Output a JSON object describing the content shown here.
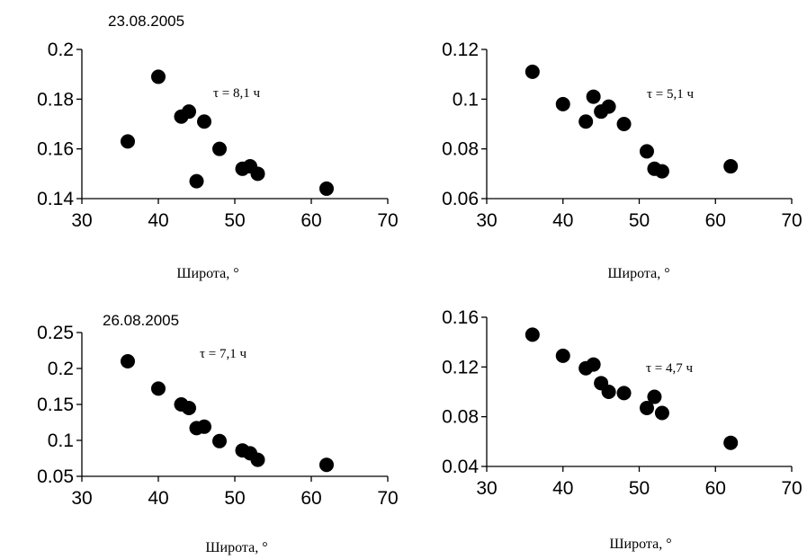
{
  "chart_data": [
    {
      "type": "scatter",
      "date": "23.08.2005",
      "annotation": "τ = 8,1 ч",
      "xlabel": "Широта, °",
      "xlim": [
        30,
        70
      ],
      "xticks": [
        "30",
        "40",
        "50",
        "60",
        "70"
      ],
      "ylim": [
        0.14,
        0.2
      ],
      "yticks": [
        "0.14",
        "0.16",
        "0.18",
        "0.2"
      ],
      "points": [
        {
          "x": 36,
          "y": 0.163
        },
        {
          "x": 40,
          "y": 0.189
        },
        {
          "x": 43,
          "y": 0.173
        },
        {
          "x": 44,
          "y": 0.175
        },
        {
          "x": 45,
          "y": 0.147
        },
        {
          "x": 46,
          "y": 0.171
        },
        {
          "x": 48,
          "y": 0.16
        },
        {
          "x": 51,
          "y": 0.152
        },
        {
          "x": 52,
          "y": 0.153
        },
        {
          "x": 53,
          "y": 0.15
        },
        {
          "x": 62,
          "y": 0.144
        }
      ]
    },
    {
      "type": "scatter",
      "date": "",
      "annotation": "τ = 5,1 ч",
      "xlabel": "Широта, °",
      "xlim": [
        30,
        70
      ],
      "xticks": [
        "30",
        "40",
        "50",
        "60",
        "70"
      ],
      "ylim": [
        0.06,
        0.12
      ],
      "yticks": [
        "0.06",
        "0.08",
        "0.1",
        "0.12"
      ],
      "points": [
        {
          "x": 36,
          "y": 0.111
        },
        {
          "x": 40,
          "y": 0.098
        },
        {
          "x": 43,
          "y": 0.091
        },
        {
          "x": 44,
          "y": 0.101
        },
        {
          "x": 45,
          "y": 0.095
        },
        {
          "x": 46,
          "y": 0.097
        },
        {
          "x": 48,
          "y": 0.09
        },
        {
          "x": 51,
          "y": 0.079
        },
        {
          "x": 52,
          "y": 0.072
        },
        {
          "x": 53,
          "y": 0.071
        },
        {
          "x": 62,
          "y": 0.073
        }
      ]
    },
    {
      "type": "scatter",
      "date": "26.08.2005",
      "annotation": "τ = 7,1 ч",
      "xlabel": "Широта, °",
      "xlim": [
        30,
        70
      ],
      "xticks": [
        "30",
        "40",
        "50",
        "60",
        "70"
      ],
      "ylim": [
        0.05,
        0.25
      ],
      "yticks": [
        "0.05",
        "0.1",
        "0.15",
        "0.2",
        "0.25"
      ],
      "points": [
        {
          "x": 36,
          "y": 0.21
        },
        {
          "x": 40,
          "y": 0.172
        },
        {
          "x": 43,
          "y": 0.15
        },
        {
          "x": 44,
          "y": 0.145
        },
        {
          "x": 45,
          "y": 0.117
        },
        {
          "x": 46,
          "y": 0.119
        },
        {
          "x": 48,
          "y": 0.099
        },
        {
          "x": 51,
          "y": 0.086
        },
        {
          "x": 52,
          "y": 0.082
        },
        {
          "x": 53,
          "y": 0.073
        },
        {
          "x": 62,
          "y": 0.066
        }
      ]
    },
    {
      "type": "scatter",
      "date": "",
      "annotation": "τ = 4,7 ч",
      "xlabel": "Широта, °",
      "xlim": [
        30,
        70
      ],
      "xticks": [
        "30",
        "40",
        "50",
        "60",
        "70"
      ],
      "ylim": [
        0.04,
        0.16
      ],
      "yticks": [
        "0.04",
        "0.08",
        "0.12",
        "0.16"
      ],
      "points": [
        {
          "x": 36,
          "y": 0.146
        },
        {
          "x": 40,
          "y": 0.129
        },
        {
          "x": 43,
          "y": 0.119
        },
        {
          "x": 44,
          "y": 0.122
        },
        {
          "x": 45,
          "y": 0.107
        },
        {
          "x": 46,
          "y": 0.1
        },
        {
          "x": 48,
          "y": 0.099
        },
        {
          "x": 51,
          "y": 0.087
        },
        {
          "x": 52,
          "y": 0.096
        },
        {
          "x": 53,
          "y": 0.083
        },
        {
          "x": 62,
          "y": 0.059
        }
      ]
    }
  ]
}
